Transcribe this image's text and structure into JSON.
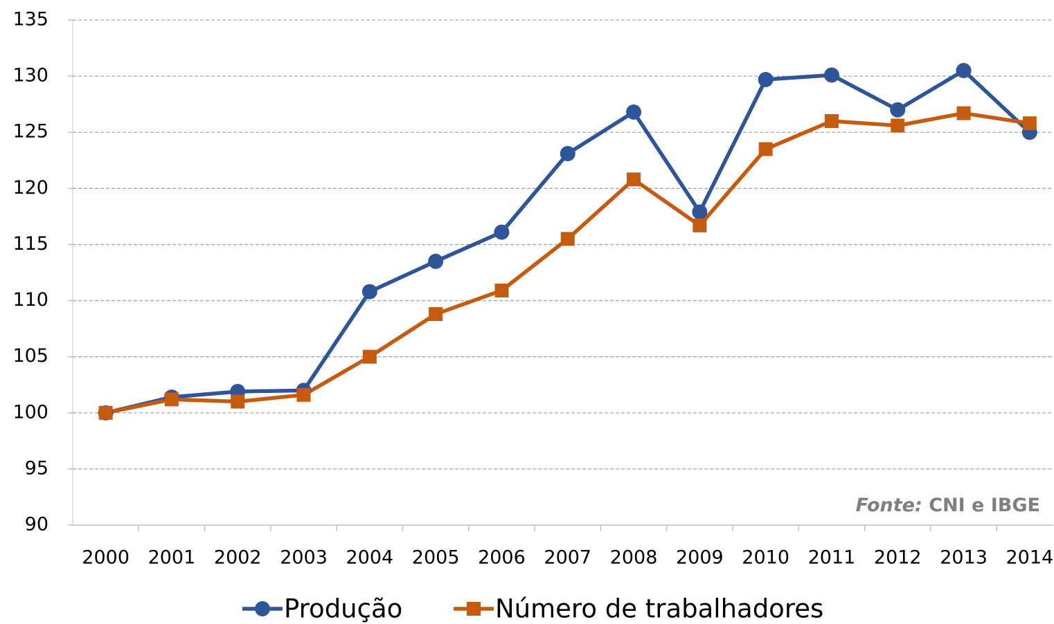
{
  "chart_data": {
    "type": "line",
    "categories": [
      "2000",
      "2001",
      "2002",
      "2003",
      "2004",
      "2005",
      "2006",
      "2007",
      "2008",
      "2009",
      "2010",
      "2011",
      "2012",
      "2013",
      "2014"
    ],
    "series": [
      {
        "name": "Produção",
        "color": "#2e5597",
        "marker": "circle",
        "values": [
          100,
          101.4,
          101.9,
          102,
          110.8,
          113.5,
          116.1,
          123.1,
          126.8,
          117.9,
          129.7,
          130.1,
          127,
          130.5,
          125
        ]
      },
      {
        "name": "Número de trabalhadores",
        "color": "#c55a11",
        "marker": "square",
        "values": [
          100,
          101.2,
          101,
          101.6,
          105,
          108.8,
          110.9,
          115.5,
          120.8,
          116.7,
          123.5,
          126,
          125.6,
          126.7,
          125.8
        ]
      }
    ],
    "ylim": [
      90,
      135
    ],
    "yticks": [
      90,
      95,
      100,
      105,
      110,
      115,
      120,
      125,
      130,
      135
    ],
    "grid": true,
    "legend": "bottom",
    "source_label": "Fonte:",
    "source": "CNI e IBGE"
  }
}
